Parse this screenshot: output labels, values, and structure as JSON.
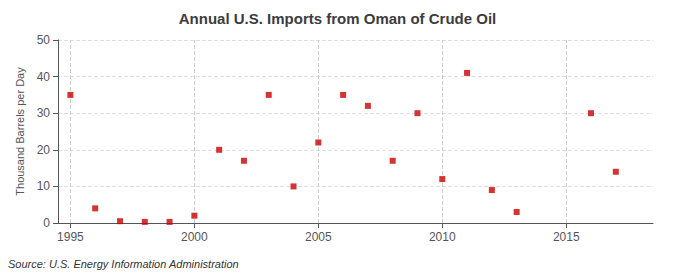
{
  "chart_data": {
    "type": "scatter",
    "title": "Annual U.S. Imports from Oman of Crude Oil",
    "ylabel": "Thousand Barrels per Day",
    "annotation": "Source: U.S. Energy Information Administration",
    "x": [
      1995,
      1996,
      1997,
      1998,
      1999,
      2000,
      2001,
      2002,
      2003,
      2004,
      2005,
      2006,
      2007,
      2008,
      2009,
      2010,
      2011,
      2012,
      2013,
      2016,
      2017
    ],
    "values": [
      35,
      4,
      0.5,
      0.3,
      0.3,
      2,
      20,
      17,
      35,
      10,
      22,
      35,
      32,
      17,
      30,
      12,
      41,
      9,
      3,
      30,
      14
    ],
    "color": "#cc0000",
    "marker": "square",
    "xlim": [
      1994.5,
      2018.5
    ],
    "xticks": [
      1995,
      2000,
      2005,
      2010,
      2015
    ],
    "ylim": [
      0,
      50
    ],
    "yticks": [
      0,
      10,
      20,
      30,
      40,
      50
    ],
    "grid": true
  }
}
